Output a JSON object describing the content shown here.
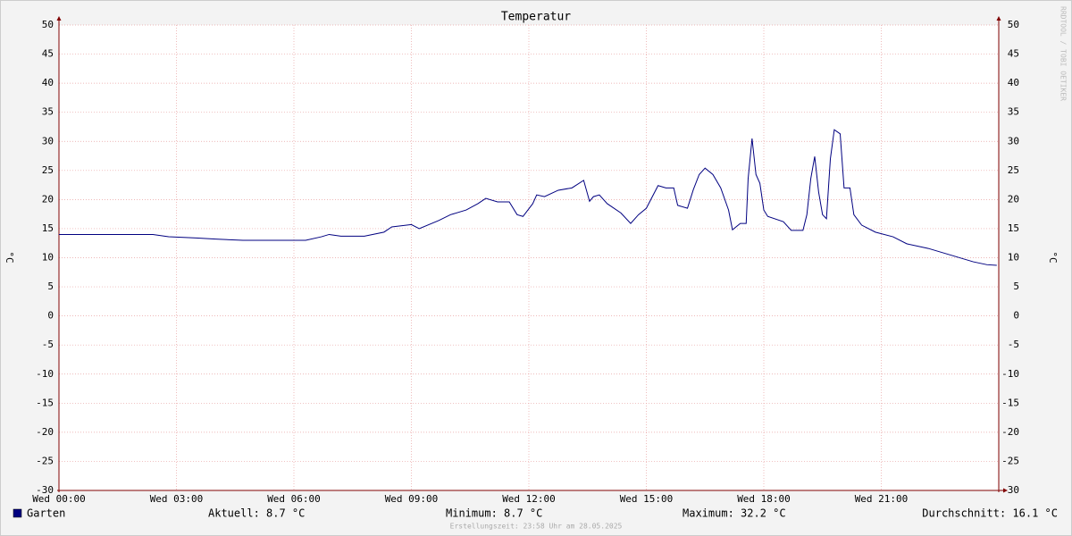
{
  "chart_data": {
    "type": "line",
    "title": "Temperatur",
    "y_label": "°C",
    "y2_label": "°C",
    "watermark": "RRDTOOL / TOBI OETIKER",
    "x": [
      0,
      0.5,
      1,
      1.5,
      2,
      2.4,
      2.8,
      3.5,
      4,
      4.7,
      5.5,
      6.3,
      6.7,
      6.9,
      7.2,
      7.8,
      8.3,
      8.5,
      9,
      9.2,
      9.7,
      10,
      10.4,
      10.7,
      10.9,
      11.2,
      11.5,
      11.7,
      11.85,
      12.1,
      12.2,
      12.4,
      12.75,
      13.1,
      13.4,
      13.55,
      13.65,
      13.8,
      14.0,
      14.35,
      14.6,
      14.8,
      15.0,
      15.3,
      15.5,
      15.7,
      15.8,
      16.05,
      16.2,
      16.35,
      16.5,
      16.7,
      16.9,
      17.1,
      17.2,
      17.4,
      17.55,
      17.6,
      17.7,
      17.8,
      17.9,
      18.0,
      18.1,
      18.5,
      18.7,
      19.0,
      19.1,
      19.2,
      19.3,
      19.4,
      19.5,
      19.6,
      19.7,
      19.8,
      19.95,
      20.05,
      20.2,
      20.3,
      20.5,
      20.85,
      21.3,
      21.65,
      22.2,
      22.9,
      23.35,
      23.7,
      23.95
    ],
    "series": [
      {
        "name": "Garten",
        "color": "#000080",
        "values": [
          14.0,
          14.0,
          14.0,
          14.0,
          14.0,
          14.0,
          13.6,
          13.4,
          13.2,
          13.0,
          13.0,
          13.0,
          13.6,
          14.0,
          13.7,
          13.7,
          14.4,
          15.3,
          15.7,
          15.0,
          16.4,
          17.4,
          18.2,
          19.3,
          20.2,
          19.6,
          19.6,
          17.4,
          17.1,
          19.3,
          20.8,
          20.5,
          21.6,
          22.0,
          23.3,
          19.7,
          20.5,
          20.8,
          19.3,
          17.7,
          15.9,
          17.4,
          18.5,
          22.4,
          22.0,
          22.0,
          19.0,
          18.5,
          21.7,
          24.3,
          25.4,
          24.3,
          22.0,
          18.2,
          14.8,
          15.9,
          15.9,
          23.6,
          30.5,
          24.3,
          22.8,
          18.2,
          17.1,
          16.2,
          14.7,
          14.7,
          17.4,
          23.6,
          27.4,
          21.3,
          17.4,
          16.7,
          27.0,
          32.0,
          31.3,
          22.0,
          22.0,
          17.4,
          15.6,
          14.4,
          13.6,
          12.4,
          11.6,
          10.2,
          9.3,
          8.8,
          8.7
        ]
      }
    ],
    "xlim": [
      0,
      24
    ],
    "xticks": [
      {
        "value": 0,
        "label": "Wed 00:00"
      },
      {
        "value": 3,
        "label": "Wed 03:00"
      },
      {
        "value": 6,
        "label": "Wed 06:00"
      },
      {
        "value": 9,
        "label": "Wed 09:00"
      },
      {
        "value": 12,
        "label": "Wed 12:00"
      },
      {
        "value": 15,
        "label": "Wed 15:00"
      },
      {
        "value": 18,
        "label": "Wed 18:00"
      },
      {
        "value": 21,
        "label": "Wed 21:00"
      }
    ],
    "ylim": [
      -30,
      50
    ],
    "yticks": [
      -30,
      -25,
      -20,
      -15,
      -10,
      -5,
      0,
      5,
      10,
      15,
      20,
      25,
      30,
      35,
      40,
      45,
      50
    ],
    "y2lim": [
      -30,
      50
    ],
    "y2ticks": [
      -30,
      -25,
      -20,
      -15,
      -10,
      -5,
      0,
      5,
      10,
      15,
      20,
      25,
      30,
      35,
      40,
      45,
      50
    ],
    "grid": true,
    "legend_stats": [
      "Aktuell: 8.7 °C",
      "Minimum: 8.7 °C",
      "Maximum: 32.2 °C",
      "Durchschnitt: 16.1 °C"
    ],
    "footer": "Erstellungszeit: 23:58 Uhr am 28.05.2025"
  }
}
